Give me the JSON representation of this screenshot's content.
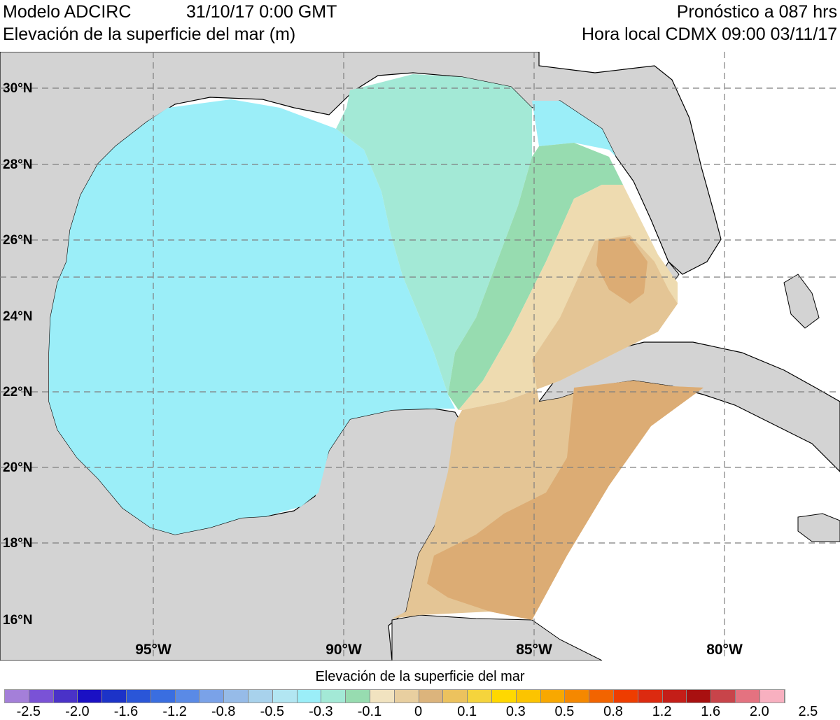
{
  "header": {
    "model": "Modelo ADCIRC",
    "init_time": "31/10/17 0:00 GMT",
    "variable": "Elevación de la superficie del mar (m)",
    "forecast": "Pronóstico a 087 hrs",
    "local_time": "Hora local CDMX 09:00 03/11/17"
  },
  "map": {
    "lat_labels": [
      "30°N",
      "28°N",
      "26°N",
      "24°N",
      "22°N",
      "20°N",
      "18°N",
      "16°N"
    ],
    "lon_labels": [
      "95°W",
      "90°W",
      "85°W",
      "80°W"
    ],
    "colors": {
      "land": "#d3d3d3",
      "ocean_outside": "#ffffff",
      "level_neg_0_1": "#9beef8",
      "level_neg_0_05": "#a3e9d6",
      "level_0": "#97dcb0",
      "level_0_1": "#eedbb0",
      "level_0_2": "#e4c595",
      "level_0_3": "#dcac74"
    }
  },
  "colorbar": {
    "title": "Elevación de la superficie del mar",
    "tick_labels": [
      "-2.5",
      "-2.0",
      "-1.6",
      "-1.2",
      "-0.8",
      "-0.5",
      "-0.3",
      "-0.1",
      "0",
      "0.1",
      "0.3",
      "0.5",
      "0.8",
      "1.2",
      "1.6",
      "2.0",
      "2.5"
    ],
    "colors": [
      "#a47fd9",
      "#7a52d6",
      "#4a32c8",
      "#1a10c4",
      "#1c33c8",
      "#2a56d8",
      "#3a6ee0",
      "#5a8ae6",
      "#7aa2e8",
      "#96bbe8",
      "#a8d2ec",
      "#b2e6f2",
      "#9beef8",
      "#a3e9d6",
      "#97dcb0",
      "#f1e3c0",
      "#e8cfa0",
      "#dcb47c",
      "#ecc25e",
      "#f5d43c",
      "#ffd800",
      "#fcc400",
      "#f8a800",
      "#f58800",
      "#f26400",
      "#ee3d00",
      "#dc2a10",
      "#c41e18",
      "#a81010",
      "#c8444a",
      "#e47280",
      "#f8b0c0"
    ]
  }
}
